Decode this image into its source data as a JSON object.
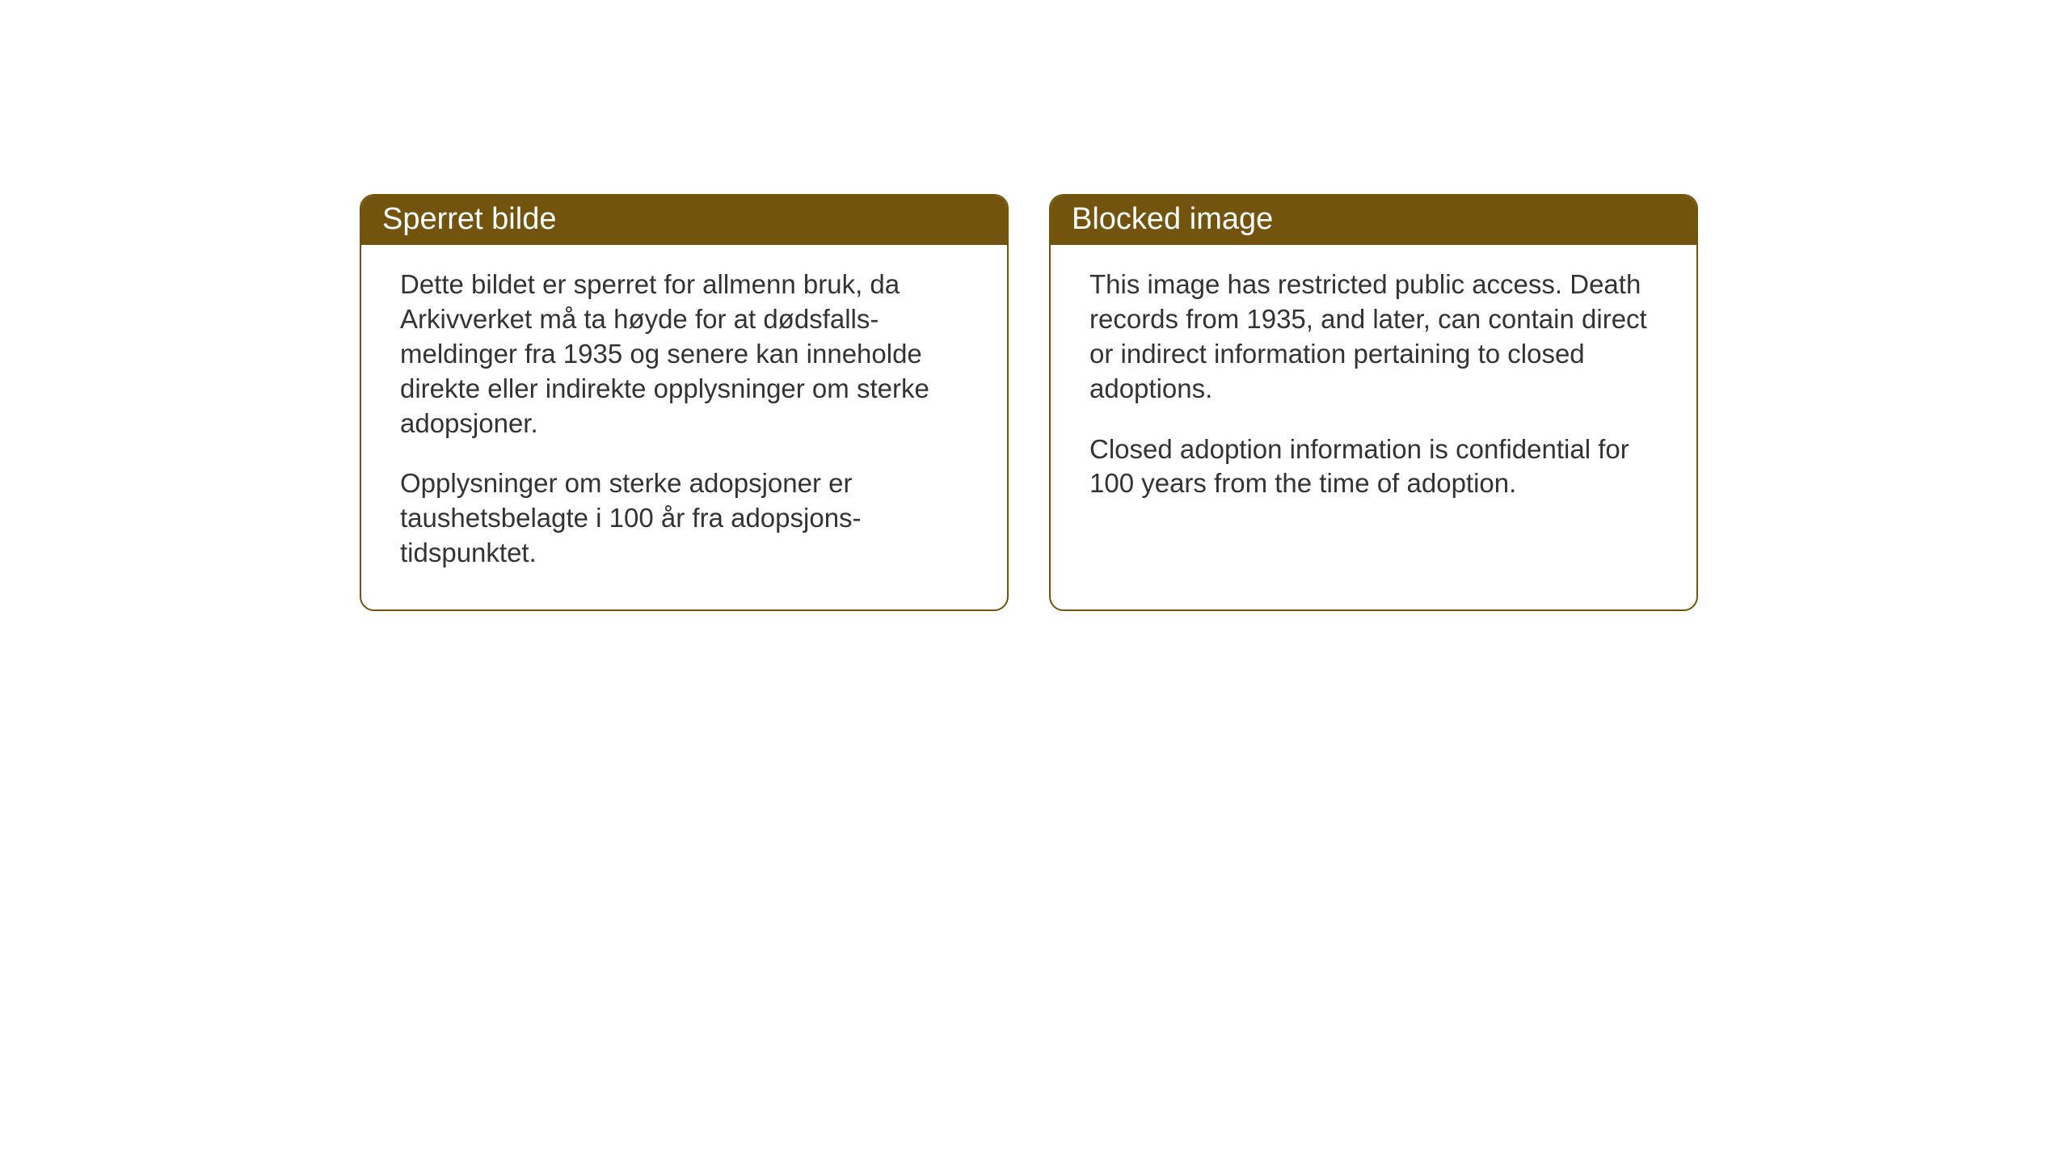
{
  "cards": {
    "norwegian": {
      "title": "Sperret bilde",
      "paragraph1": "Dette bildet er sperret for allmenn bruk, da Arkivverket må ta høyde for at dødsfalls-meldinger fra 1935 og senere kan inneholde direkte eller indirekte opplysninger om sterke adopsjoner.",
      "paragraph2": "Opplysninger om sterke adopsjoner er taushetsbelagte i 100 år fra adopsjons-tidspunktet."
    },
    "english": {
      "title": "Blocked image",
      "paragraph1": "This image has restricted public access. Death records from 1935, and later, can contain direct or indirect information pertaining to closed adoptions.",
      "paragraph2": "Closed adoption information is confidential for 100 years from the time of adoption."
    }
  },
  "styling": {
    "card_border_color": "#72540f",
    "card_header_bg": "#72540f",
    "card_header_text_color": "#ffffff",
    "card_body_text_color": "#333333",
    "background_color": "#ffffff",
    "card_border_radius": 18,
    "header_fontsize": 38,
    "body_fontsize": 33
  }
}
